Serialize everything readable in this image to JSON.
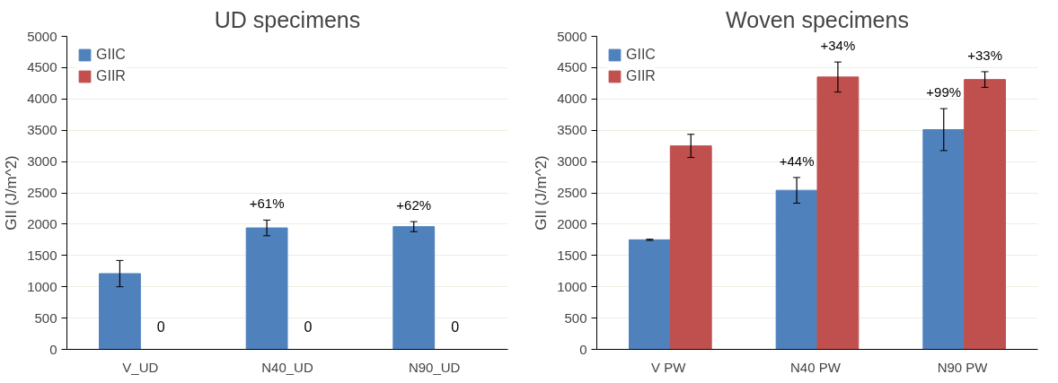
{
  "chart_data": [
    {
      "type": "bar",
      "title": "UD specimens",
      "ylabel": "GII (J/m^2)",
      "categories": [
        "V_UD",
        "N40_UD",
        "N90_UD"
      ],
      "ylim": [
        0,
        5000
      ],
      "yticks": [
        0,
        500,
        1000,
        1500,
        2000,
        2500,
        3000,
        3500,
        4000,
        4500,
        5000
      ],
      "grid": "y",
      "legend": "top left",
      "series": [
        {
          "name": "GIIC",
          "color": "#4f81bd",
          "values": [
            1210,
            1940,
            1960
          ],
          "errors": [
            210,
            125,
            80
          ]
        },
        {
          "name": "GIIR",
          "color": "#c0504d",
          "values": [
            0,
            0,
            0
          ],
          "value_labels": [
            "0",
            "0",
            "0"
          ]
        }
      ],
      "annotations": [
        {
          "text": "+61%",
          "x": "N40_UD",
          "y": 1940
        },
        {
          "text": "+62%",
          "x": "N90_UD",
          "y": 1960
        }
      ]
    },
    {
      "type": "bar",
      "title": "Woven specimens",
      "ylabel": "GII (J/m^2)",
      "categories": [
        "V  PW",
        "N40  PW",
        "N90  PW"
      ],
      "ylim": [
        0,
        5000
      ],
      "yticks": [
        0,
        500,
        1000,
        1500,
        2000,
        2500,
        3000,
        3500,
        4000,
        4500,
        5000
      ],
      "grid": "y",
      "legend": "top left",
      "series": [
        {
          "name": "GIIC",
          "color": "#4f81bd",
          "values": [
            1750,
            2540,
            3510
          ],
          "errors": [
            10,
            205,
            335
          ]
        },
        {
          "name": "GIIR",
          "color": "#c0504d",
          "values": [
            3250,
            4350,
            4310
          ],
          "errors": [
            185,
            240,
            125
          ]
        }
      ],
      "annotations": [
        {
          "text": "+44%",
          "x": "N40  PW",
          "y": 2540
        },
        {
          "text": "+99%",
          "x": "N90  PW",
          "y": 3510
        },
        {
          "text": "+34%",
          "x": "N40  PW",
          "y": 4350
        },
        {
          "text": "+33%",
          "x": "N90  PW",
          "y": 4310
        }
      ]
    }
  ]
}
